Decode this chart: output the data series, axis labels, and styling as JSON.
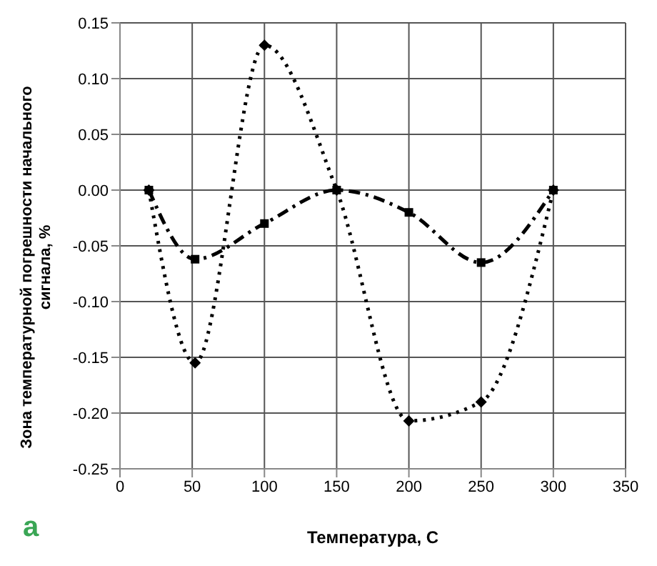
{
  "chart_data": {
    "type": "line",
    "xlabel": "Температура, С",
    "ylabel": "Зона температурной погрешности начального сигнала, %",
    "annotations": [
      "a"
    ],
    "series": [
      {
        "color": "#000000",
        "x": [
          20,
          52,
          100,
          150,
          200,
          250,
          300
        ],
        "values": [
          0,
          -0.062,
          -0.03,
          0,
          -0.02,
          -0.065,
          0
        ],
        "marker": "square",
        "line_style": "dashed"
      },
      {
        "color": "#000000",
        "x": [
          20,
          52,
          100,
          150,
          200,
          250,
          300
        ],
        "values": [
          0,
          -0.155,
          0.13,
          0,
          -0.207,
          -0.19,
          0
        ],
        "marker": "diamond",
        "line_style": "dotted"
      }
    ],
    "xlim": [
      0,
      350
    ],
    "xticks": [
      0,
      50,
      100,
      150,
      200,
      250,
      300,
      350
    ],
    "ylim": [
      -0.25,
      0.15
    ],
    "yticks": [
      {
        "value": -0.25,
        "label": "-0.25"
      },
      {
        "value": -0.2,
        "label": "-0.20"
      },
      {
        "value": -0.15,
        "label": "-0.15"
      },
      {
        "value": -0.1,
        "label": "-0.10"
      },
      {
        "value": -0.05,
        "label": "-0.05"
      },
      {
        "value": 0,
        "label": "0.00"
      },
      {
        "value": 0.05,
        "label": "0.05"
      },
      {
        "value": 0.1,
        "label": "0.10"
      },
      {
        "value": 0.15,
        "label": "0.15"
      }
    ],
    "grid": true,
    "legend": false
  }
}
